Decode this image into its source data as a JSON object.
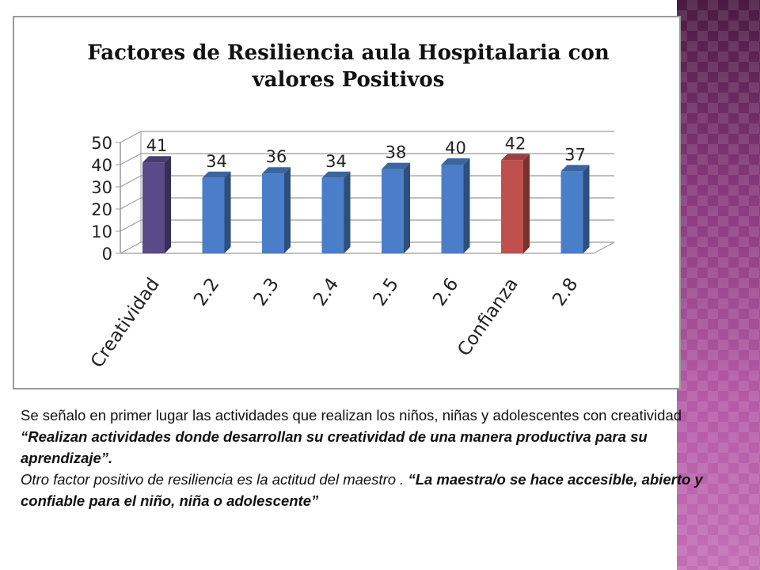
{
  "slide": {
    "accent_panel_color": "#7a2a6e",
    "caption": {
      "p1_plain": "Se señalo en primer lugar las actividades que realizan los niños, niñas y adolescentes con creatividad ",
      "p1_quote": "“Realizan actividades donde desarrollan su creatividad de una manera productiva para su aprendizaje”.",
      "p2_plain": "Otro factor positivo de resiliencia es la actitud del maestro . ",
      "p2_quote": "“La maestra/o se hace accesible, abierto y confiable para el niño, niña o adolescente”"
    }
  },
  "chart_data": {
    "type": "bar",
    "style": "3d-column",
    "title_line1": "Factores de Resiliencia  aula Hospitalaria con",
    "title_line2": "valores Positivos",
    "categories": [
      "Creatividad",
      "2.2",
      "2.3",
      "2.4",
      "2.5",
      "2.6",
      "Confianza",
      "2.8"
    ],
    "values": [
      41,
      34,
      36,
      34,
      38,
      40,
      42,
      37
    ],
    "bar_colors": [
      "#5b4a8a",
      "#4a7ec8",
      "#4a7ec8",
      "#4a7ec8",
      "#4a7ec8",
      "#4a7ec8",
      "#c0504d",
      "#4a7ec8"
    ],
    "ylim": [
      0,
      50
    ],
    "yticks": [
      0,
      10,
      20,
      30,
      40,
      50
    ],
    "data_labels": true,
    "grid": true,
    "legend": "none"
  }
}
